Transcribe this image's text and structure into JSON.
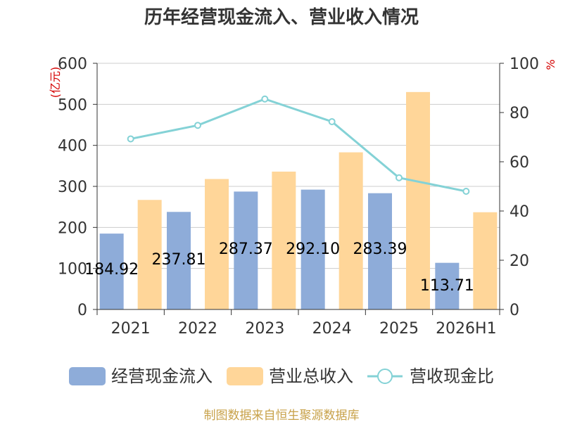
{
  "title": "历年经营现金流入、营业收入情况",
  "left_unit": "(亿元)",
  "right_unit": "%",
  "source": "制图数据来自恒生聚源数据库",
  "colors": {
    "cash_inflow": "#8eacd9",
    "revenue": "#ffd699",
    "ratio": "#84d2d6"
  },
  "chart_data": {
    "type": "bar",
    "categories": [
      "2021",
      "2022",
      "2023",
      "2024",
      "2025",
      "2026H1"
    ],
    "series": [
      {
        "name": "经营现金流入",
        "type": "bar",
        "axis": "left",
        "values": [
          184.92,
          237.81,
          287.37,
          292.1,
          283.39,
          113.71
        ]
      },
      {
        "name": "营业总收入",
        "type": "bar",
        "axis": "left",
        "values": [
          267,
          318,
          336,
          383,
          530,
          237
        ]
      },
      {
        "name": "营收现金比",
        "type": "line",
        "axis": "right",
        "values": [
          69.3,
          74.8,
          85.5,
          76.3,
          53.5,
          48.0
        ]
      }
    ],
    "data_labels": [
      "184.92",
      "237.81",
      "287.37",
      "292.10",
      "283.39",
      "113.71"
    ],
    "left_axis": {
      "min": 0,
      "max": 600,
      "ticks": [
        0,
        100,
        200,
        300,
        400,
        500,
        600
      ]
    },
    "right_axis": {
      "min": 0,
      "max": 100,
      "ticks": [
        0,
        20,
        40,
        60,
        80,
        100
      ]
    },
    "grid": true,
    "legend_position": "bottom"
  }
}
